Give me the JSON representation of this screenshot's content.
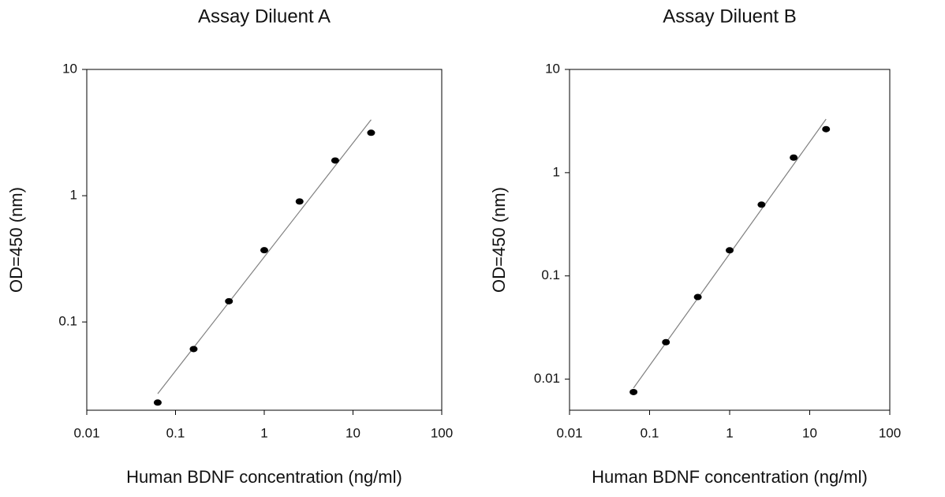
{
  "chart_data": [
    {
      "type": "scatter",
      "title": "Assay Diluent A",
      "x_label": "Human BDNF concentration (ng/ml)",
      "y_label": "OD=450 (nm)",
      "x_scale": "log",
      "y_scale": "log",
      "color": "#000000",
      "line_color": "#808080",
      "xlim": [
        0.01,
        100
      ],
      "xticks": [
        0.01,
        0.1,
        1,
        10,
        100
      ],
      "ylim": [
        0.02,
        10
      ],
      "yticks": [
        0.1,
        1,
        10
      ],
      "series": [
        {
          "x": [
            0.063,
            0.16,
            0.4,
            1,
            2.5,
            6.3,
            16
          ],
          "values": [
            0.023,
            0.061,
            0.146,
            0.37,
            0.9,
            1.9,
            3.15
          ]
        }
      ],
      "trendline": {
        "x": [
          0.063,
          16
        ],
        "y": [
          0.027,
          4.0
        ]
      }
    },
    {
      "type": "scatter",
      "title": "Assay Diluent B",
      "x_label": "Human BDNF concentration (ng/ml)",
      "y_label": "OD=450 (nm)",
      "x_scale": "log",
      "y_scale": "log",
      "color": "#000000",
      "line_color": "#808080",
      "xlim": [
        0.01,
        100
      ],
      "xticks": [
        0.01,
        0.1,
        1,
        10,
        100
      ],
      "ylim": [
        0.005,
        10
      ],
      "yticks": [
        0.01,
        0.1,
        1,
        10
      ],
      "series": [
        {
          "x": [
            0.063,
            0.16,
            0.4,
            1,
            2.5,
            6.3,
            16
          ],
          "values": [
            0.0075,
            0.0228,
            0.0624,
            0.177,
            0.49,
            1.4,
            2.64
          ]
        }
      ],
      "trendline": {
        "x": [
          0.063,
          16
        ],
        "y": [
          0.0082,
          3.3
        ]
      }
    }
  ]
}
